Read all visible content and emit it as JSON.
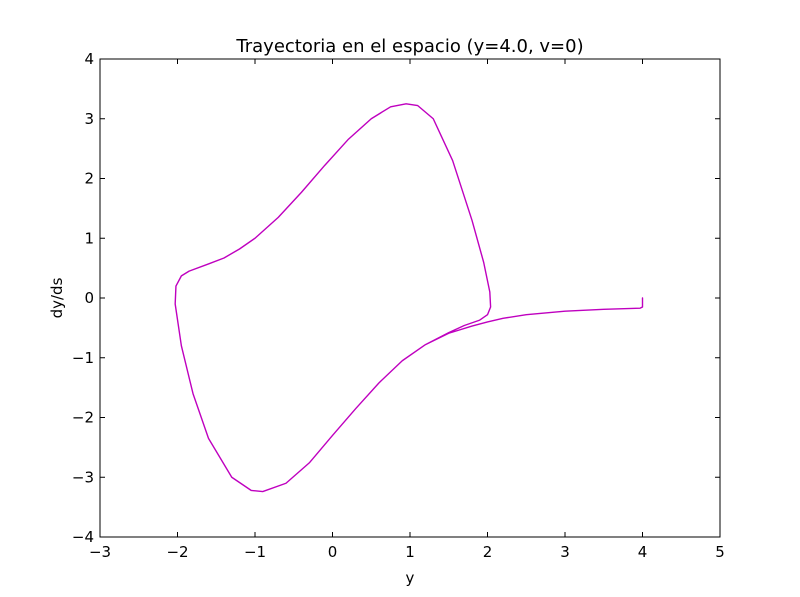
{
  "chart_data": {
    "type": "line",
    "title": "Trayectoria en el espacio (y=4.0, v=0)",
    "xlabel": "y",
    "ylabel": "dy/ds",
    "xlim": [
      -3,
      5
    ],
    "ylim": [
      -4,
      4
    ],
    "xticks": [
      -3,
      -2,
      -1,
      0,
      1,
      2,
      3,
      4,
      5
    ],
    "yticks": [
      -4,
      -3,
      -2,
      -1,
      0,
      1,
      2,
      3,
      4
    ],
    "xtick_labels": [
      "−3",
      "−2",
      "−1",
      "0",
      "1",
      "2",
      "3",
      "4",
      "5"
    ],
    "ytick_labels": [
      "−4",
      "−3",
      "−2",
      "−1",
      "0",
      "1",
      "2",
      "3",
      "4"
    ],
    "grid": false,
    "series": [
      {
        "color": "#bf00bf",
        "points": [
          [
            4.0,
            0.0
          ],
          [
            4.0,
            -0.15
          ],
          [
            3.97,
            -0.17
          ],
          [
            3.5,
            -0.19
          ],
          [
            3.0,
            -0.22
          ],
          [
            2.5,
            -0.28
          ],
          [
            2.2,
            -0.34
          ],
          [
            2.0,
            -0.4
          ],
          [
            1.8,
            -0.47
          ],
          [
            1.5,
            -0.59
          ],
          [
            1.2,
            -0.78
          ],
          [
            0.9,
            -1.05
          ],
          [
            0.6,
            -1.42
          ],
          [
            0.3,
            -1.85
          ],
          [
            0.0,
            -2.3
          ],
          [
            -0.3,
            -2.76
          ],
          [
            -0.6,
            -3.1
          ],
          [
            -0.9,
            -3.24
          ],
          [
            -1.05,
            -3.22
          ],
          [
            -1.3,
            -3.0
          ],
          [
            -1.6,
            -2.35
          ],
          [
            -1.8,
            -1.6
          ],
          [
            -1.95,
            -0.8
          ],
          [
            -2.03,
            -0.1
          ],
          [
            -2.02,
            0.2
          ],
          [
            -1.95,
            0.37
          ],
          [
            -1.85,
            0.45
          ],
          [
            -1.6,
            0.57
          ],
          [
            -1.4,
            0.67
          ],
          [
            -1.2,
            0.82
          ],
          [
            -1.0,
            1.0
          ],
          [
            -0.7,
            1.35
          ],
          [
            -0.4,
            1.77
          ],
          [
            -0.1,
            2.22
          ],
          [
            0.2,
            2.65
          ],
          [
            0.5,
            3.0
          ],
          [
            0.75,
            3.2
          ],
          [
            0.95,
            3.25
          ],
          [
            1.1,
            3.22
          ],
          [
            1.3,
            3.0
          ],
          [
            1.55,
            2.3
          ],
          [
            1.8,
            1.3
          ],
          [
            1.95,
            0.6
          ],
          [
            2.03,
            0.1
          ],
          [
            2.04,
            -0.15
          ],
          [
            2.0,
            -0.28
          ],
          [
            1.9,
            -0.37
          ],
          [
            1.7,
            -0.46
          ],
          [
            1.5,
            -0.58
          ],
          [
            1.2,
            -0.78
          ],
          [
            0.9,
            -1.05
          ],
          [
            0.6,
            -1.42
          ],
          [
            0.3,
            -1.85
          ],
          [
            0.0,
            -2.3
          ],
          [
            -0.3,
            -2.76
          ],
          [
            -0.6,
            -3.1
          ],
          [
            -0.9,
            -3.24
          ],
          [
            -1.05,
            -3.22
          ],
          [
            -1.3,
            -3.0
          ],
          [
            -1.6,
            -2.35
          ],
          [
            -1.8,
            -1.6
          ],
          [
            -1.95,
            -0.8
          ],
          [
            -2.03,
            -0.1
          ],
          [
            -2.02,
            0.2
          ],
          [
            -1.95,
            0.37
          ],
          [
            -1.85,
            0.45
          ],
          [
            -1.6,
            0.57
          ],
          [
            -1.4,
            0.67
          ],
          [
            -1.2,
            0.82
          ],
          [
            -1.0,
            1.0
          ],
          [
            -0.7,
            1.35
          ],
          [
            -0.4,
            1.77
          ],
          [
            -0.1,
            2.22
          ],
          [
            0.2,
            2.65
          ],
          [
            0.5,
            3.0
          ],
          [
            0.75,
            3.2
          ],
          [
            0.95,
            3.25
          ],
          [
            1.1,
            3.22
          ],
          [
            1.3,
            3.0
          ],
          [
            1.55,
            2.3
          ],
          [
            1.8,
            1.3
          ],
          [
            1.95,
            0.6
          ],
          [
            2.03,
            0.1
          ],
          [
            2.04,
            -0.15
          ],
          [
            2.0,
            -0.28
          ],
          [
            1.9,
            -0.37
          ]
        ]
      }
    ]
  }
}
